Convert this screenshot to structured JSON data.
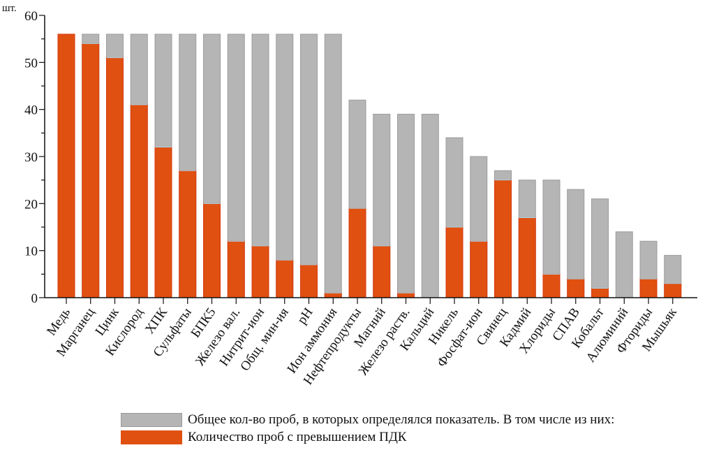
{
  "chart_data": {
    "type": "bar",
    "stacking": "overlay",
    "title": "",
    "xlabel": "",
    "ylabel": "шт.",
    "ylim": [
      0,
      60
    ],
    "yticks": [
      0,
      10,
      20,
      30,
      40,
      50,
      60
    ],
    "yminor_step": 5,
    "grid": false,
    "legend_position": "bottom",
    "categories": [
      "Медь",
      "Марганец",
      "Цинк",
      "Кислород",
      "ХПК",
      "Сульфаты",
      "БПК5",
      "Железо вал.",
      "Нитрит-ион",
      "Общ. мин-ия",
      "pH",
      "Ион аммония",
      "Нефтепродукты",
      "Магний",
      "Железо раств.",
      "Кальций",
      "Никель",
      "Фосфат-ион",
      "Свинец",
      "Кадмий",
      "Хлориды",
      "СПАВ",
      "Кобальт",
      "Алюминий",
      "Фториды",
      "Мышьяк"
    ],
    "series": [
      {
        "name": "Общее кол-во проб, в которых определялся показатель. В том числе из них:",
        "color": "#b5b5b5",
        "values": [
          56,
          56,
          56,
          56,
          56,
          56,
          56,
          56,
          56,
          56,
          56,
          56,
          42,
          39,
          39,
          39,
          34,
          30,
          27,
          25,
          25,
          23,
          21,
          14,
          12,
          9
        ]
      },
      {
        "name": "Количество проб с превышением ПДК",
        "color": "#e05010",
        "values": [
          56,
          54,
          51,
          41,
          32,
          27,
          20,
          12,
          11,
          8,
          7,
          1,
          19,
          11,
          1,
          0,
          15,
          12,
          25,
          17,
          5,
          4,
          2,
          0,
          4,
          3
        ]
      }
    ]
  }
}
